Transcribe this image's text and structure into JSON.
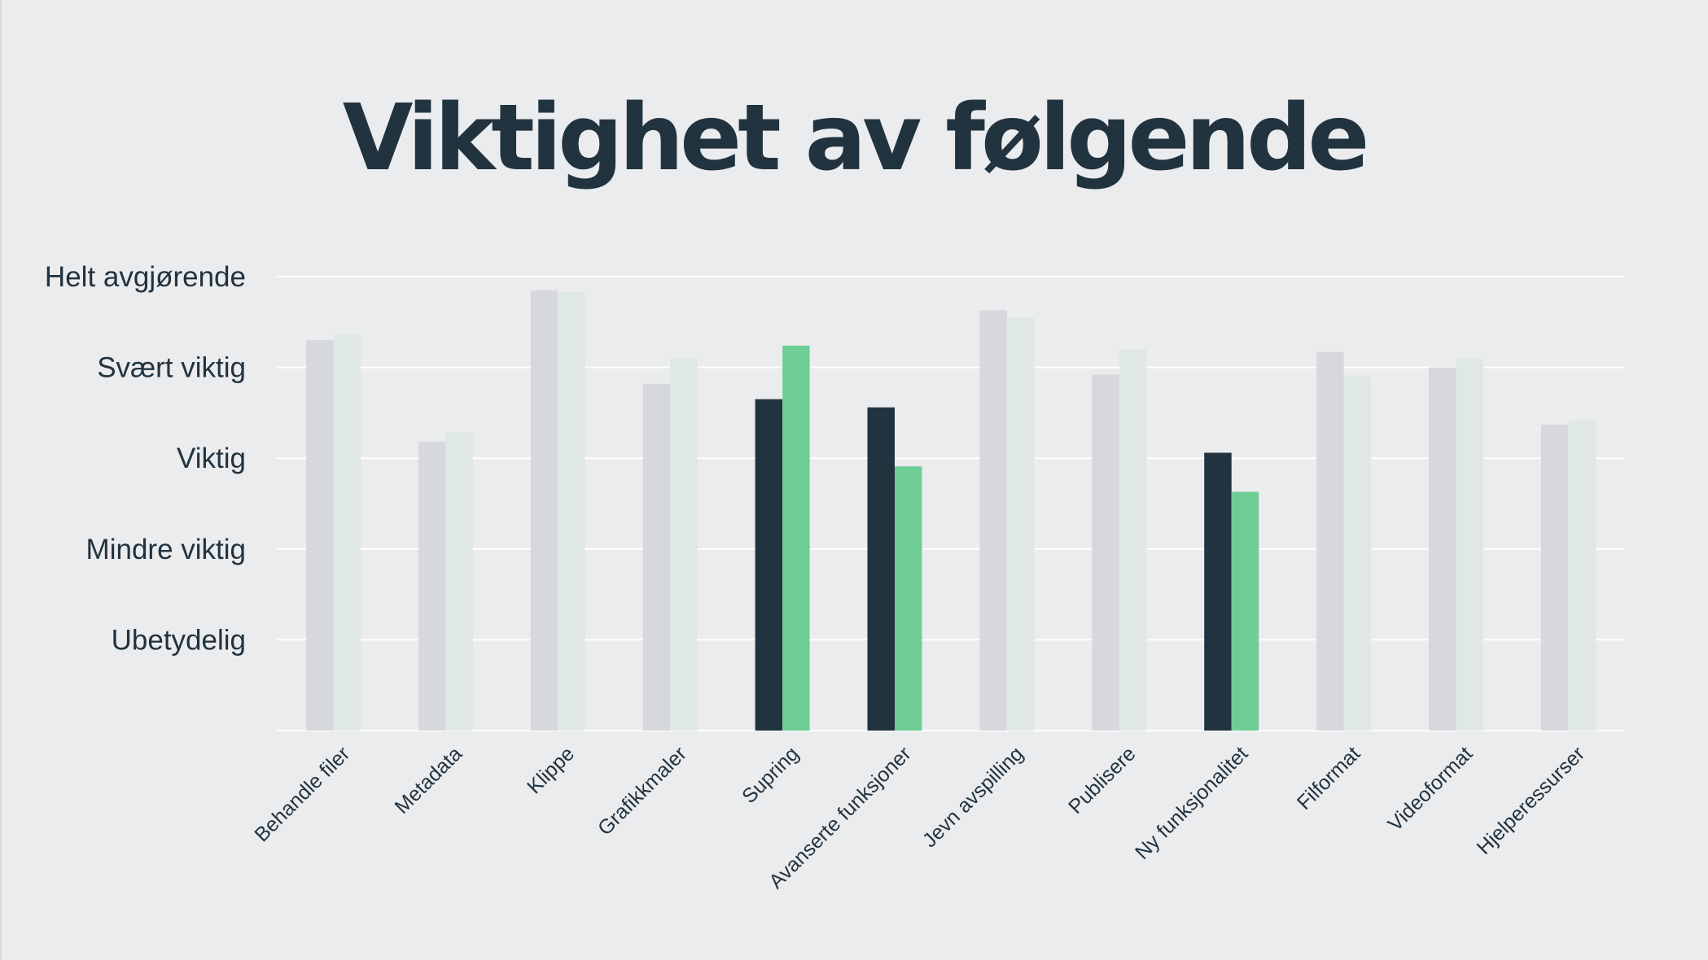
{
  "chart_data": {
    "type": "bar",
    "title": "Viktighet av følgende",
    "xlabel": "",
    "ylabel": "",
    "ylim": [
      0,
      5
    ],
    "y_tick_values": [
      1,
      2,
      3,
      4,
      5
    ],
    "y_tick_labels": [
      "Ubetydelig",
      "Mindre viktig",
      "Viktig",
      "Svært viktig",
      "Helt avgjørende"
    ],
    "grid": true,
    "legend": "none",
    "categories": [
      "Behandle filer",
      "Metadata",
      "Klippe",
      "Grafikkmaler",
      "Supring",
      "Avanserte funksjoner",
      "Jevn avspilling",
      "Publisere",
      "Ny funksjonalitet",
      "Filformat",
      "Videoformat",
      "Hjelperessurser"
    ],
    "highlighted": [
      "Supring",
      "Avanserte funksjoner",
      "Ny funksjonalitet"
    ],
    "series": [
      {
        "values": [
          4.3,
          3.18,
          4.85,
          3.82,
          3.65,
          3.56,
          4.63,
          3.92,
          3.06,
          4.17,
          4.0,
          3.37
        ],
        "color": "#21333f",
        "muted_color": "#d6d8db"
      },
      {
        "values": [
          4.36,
          3.29,
          4.83,
          4.1,
          4.24,
          2.91,
          4.55,
          4.2,
          2.63,
          3.9,
          4.1,
          3.41
        ],
        "color": "#6fce96",
        "muted_color": "#dfe8e4"
      }
    ]
  }
}
